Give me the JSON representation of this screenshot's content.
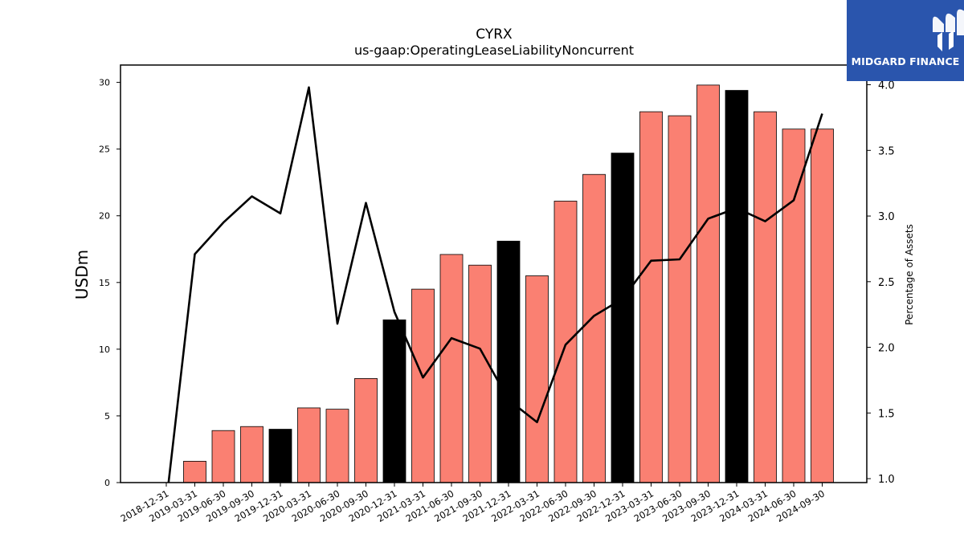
{
  "chart_data": {
    "type": "bar",
    "title": "CYRX",
    "subtitle": "us-gaap:OperatingLeaseLiabilityNoncurrent",
    "ylabel": "USDm",
    "y2label": "Percentage of Assets",
    "ylim": [
      0,
      31.3
    ],
    "y2lim": [
      0.97,
      4.15
    ],
    "yticks": [
      0,
      5,
      10,
      15,
      20,
      25,
      30
    ],
    "y2ticks": [
      "1.0",
      "1.5",
      "2.0",
      "2.5",
      "3.0",
      "3.5",
      "4.0"
    ],
    "categories": [
      "2018-12-31",
      "2019-03-31",
      "2019-06-30",
      "2019-09-30",
      "2019-12-31",
      "2020-03-31",
      "2020-06-30",
      "2020-09-30",
      "2020-12-31",
      "2021-03-31",
      "2021-06-30",
      "2021-09-30",
      "2021-12-31",
      "2022-03-31",
      "2022-06-30",
      "2022-09-30",
      "2022-12-31",
      "2023-03-31",
      "2023-06-30",
      "2023-09-30",
      "2023-12-31",
      "2024-03-31",
      "2024-06-30",
      "2024-09-30"
    ],
    "series": [
      {
        "type": "bar",
        "values": [
          0,
          1.6,
          3.9,
          4.2,
          4.0,
          5.6,
          5.5,
          7.8,
          12.2,
          14.5,
          17.1,
          16.3,
          18.1,
          15.5,
          21.1,
          23.1,
          24.7,
          27.8,
          27.5,
          29.8,
          29.4,
          27.8,
          26.5,
          26.5
        ],
        "year_end_color": "#000000",
        "quarter_color": "#fa8072"
      },
      {
        "type": "line",
        "axis": "secondary",
        "values": [
          0.82,
          2.71,
          2.95,
          3.15,
          3.02,
          3.98,
          2.18,
          3.1,
          2.27,
          1.77,
          2.07,
          1.99,
          1.6,
          1.43,
          2.02,
          2.24,
          2.37,
          2.66,
          2.67,
          2.98,
          3.06,
          2.96,
          3.12,
          3.78
        ],
        "color": "#000000"
      }
    ]
  },
  "logo": {
    "text": "MIDGARD FINANCE",
    "icon": "midgard-m-logo-icon",
    "background": "#2a55ad"
  }
}
